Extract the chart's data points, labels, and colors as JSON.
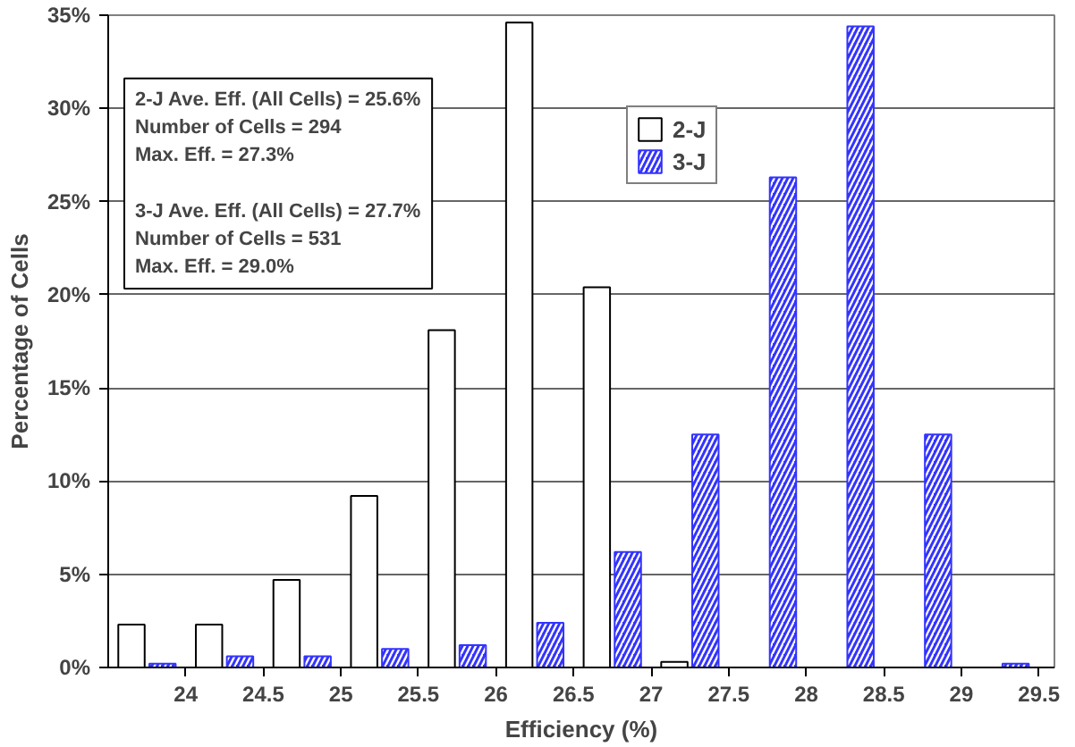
{
  "chart_data": {
    "type": "bar",
    "xlabel": "Efficiency (%)",
    "ylabel": "Percentage of Cells",
    "x": [
      23.75,
      24.25,
      24.75,
      25.25,
      25.75,
      26.25,
      26.75,
      27.25,
      27.75,
      28.25,
      28.75,
      29.25
    ],
    "series": [
      {
        "name": "2-J",
        "color": "#ffffff",
        "values": [
          2.3,
          2.3,
          4.7,
          9.2,
          18.1,
          34.6,
          20.4,
          0.3,
          0,
          0,
          0,
          0
        ]
      },
      {
        "name": "3-J",
        "color": "#3333ff",
        "values": [
          0.2,
          0.6,
          0.6,
          1.0,
          1.2,
          2.4,
          6.2,
          12.5,
          26.3,
          34.4,
          12.5,
          0.2
        ]
      }
    ],
    "xlim": [
      23.5,
      29.6
    ],
    "xticks": [
      24,
      24.5,
      25,
      25.5,
      26,
      26.5,
      27,
      27.5,
      28,
      28.5,
      29,
      29.5
    ],
    "ylim": [
      0,
      35
    ],
    "yticks": [
      {
        "value": 0,
        "label": "0%"
      },
      {
        "value": 5,
        "label": "5%"
      },
      {
        "value": 10,
        "label": "10%"
      },
      {
        "value": 15,
        "label": "15%"
      },
      {
        "value": 20,
        "label": "20%"
      },
      {
        "value": 25,
        "label": "25%"
      },
      {
        "value": 30,
        "label": "30%"
      },
      {
        "value": 35,
        "label": "35%"
      }
    ],
    "grid": "y",
    "legend": "top",
    "annotations": [
      "2-J Ave. Eff. (All Cells) = 25.6%\nNumber of Cells = 294\nMax. Eff. = 27.3%",
      "3-J Ave. Eff. (All Cells) = 27.7%\nNumber of Cells = 531\nMax. Eff. = 29.0%"
    ]
  }
}
